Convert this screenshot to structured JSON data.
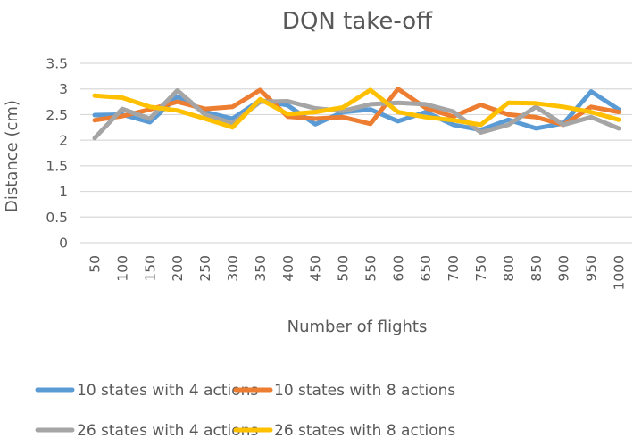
{
  "chart_data": {
    "type": "line",
    "title": "DQN take-off",
    "xlabel": "Number of flights",
    "ylabel": "Distance (cm)",
    "ylim": [
      0,
      3.5
    ],
    "yticks": [
      "0",
      "0.5",
      "1",
      "1.5",
      "2",
      "2.5",
      "3",
      "3.5"
    ],
    "ytick_values": [
      0,
      0.5,
      1,
      1.5,
      2,
      2.5,
      3,
      3.5
    ],
    "grid": true,
    "legend_position": "bottom",
    "categories": [
      "50",
      "100",
      "150",
      "200",
      "250",
      "300",
      "350",
      "400",
      "450",
      "500",
      "550",
      "600",
      "650",
      "700",
      "750",
      "800",
      "850",
      "900",
      "950",
      "1000"
    ],
    "series": [
      {
        "name": "10 states with 4 actions",
        "color": "#5B9BD5",
        "values": [
          2.49,
          2.5,
          2.35,
          2.85,
          2.55,
          2.42,
          2.78,
          2.68,
          2.31,
          2.55,
          2.6,
          2.37,
          2.55,
          2.3,
          2.2,
          2.4,
          2.23,
          2.33,
          2.95,
          2.6
        ]
      },
      {
        "name": "10 states with 8 actions",
        "color": "#ED7D31",
        "values": [
          2.39,
          2.47,
          2.6,
          2.75,
          2.61,
          2.65,
          2.98,
          2.46,
          2.42,
          2.45,
          2.32,
          3.0,
          2.63,
          2.46,
          2.69,
          2.5,
          2.45,
          2.3,
          2.65,
          2.55
        ]
      },
      {
        "name": "26 states with 4 actions",
        "color": "#A5A5A5",
        "values": [
          2.04,
          2.61,
          2.42,
          2.97,
          2.5,
          2.33,
          2.75,
          2.76,
          2.62,
          2.57,
          2.7,
          2.73,
          2.7,
          2.56,
          2.15,
          2.3,
          2.65,
          2.3,
          2.45,
          2.23
        ]
      },
      {
        "name": "26 states with 8 actions",
        "color": "#FFC000",
        "values": [
          2.87,
          2.83,
          2.65,
          2.58,
          2.42,
          2.25,
          2.8,
          2.51,
          2.55,
          2.64,
          2.98,
          2.55,
          2.45,
          2.39,
          2.3,
          2.73,
          2.72,
          2.65,
          2.55,
          2.4
        ]
      }
    ]
  }
}
